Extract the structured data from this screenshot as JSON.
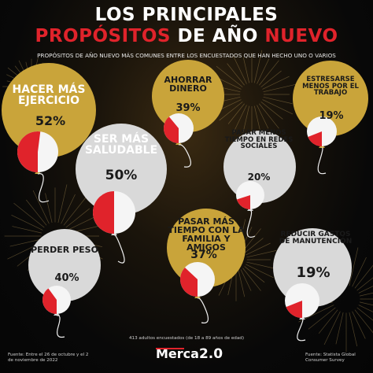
{
  "title": {
    "line1": "LOS PRINCIPALES",
    "line2_a": "PROPÓSITOS",
    "line2_b": "DE AÑO",
    "line2_c": "NUEVO"
  },
  "colors": {
    "gold": "#c9a43a",
    "silver": "#d9d9d9",
    "red": "#e0232b",
    "background": "#080808"
  },
  "chart_data": {
    "type": "other",
    "subtitle": "PROPÓSITOS DE AÑO NUEVO MÁS COMUNES ENTRE LOS ENCUESTADOS QUE HAN HECHO UNO O VARIOS",
    "note": "413 adultos encuestados (de 18 a 89 años de edad)",
    "unit": "%",
    "items": [
      {
        "label": "HACER MÁS EJERCICIO",
        "value": 52,
        "value_text": "52%",
        "color": "gold"
      },
      {
        "label": "SER MÁS SALUDABLE",
        "value": 50,
        "value_text": "50%",
        "color": "silver"
      },
      {
        "label": "AHORRAR DINERO",
        "value": 39,
        "value_text": "39%",
        "color": "gold"
      },
      {
        "label": "ESTRESARSE MENOS POR EL TRABAJO",
        "value": 19,
        "value_text": "19%",
        "color": "gold"
      },
      {
        "label": "PASAR MENOS TIEMPO EN REDES SOCIALES",
        "value": 20,
        "value_text": "20%",
        "color": "silver"
      },
      {
        "label": "PASAR MÁS TIEMPO CON LA FAMILIA Y AMIGOS",
        "value": 37,
        "value_text": "37%",
        "color": "gold"
      },
      {
        "label": "PERDER PESO",
        "value": 40,
        "value_text": "40%",
        "color": "silver"
      },
      {
        "label": "REDUCIR GASTOS DE MANUTENCIÓN",
        "value": 19,
        "value_text": "19%",
        "color": "silver"
      }
    ]
  },
  "footer": {
    "date_note": "Fuente: Entre el 26 de octubre y el 2 de noviembre de 2022",
    "source": "Fuente: Statista Global Consumer Survey",
    "logo_text": "Merca",
    "logo_number": "2.0"
  }
}
